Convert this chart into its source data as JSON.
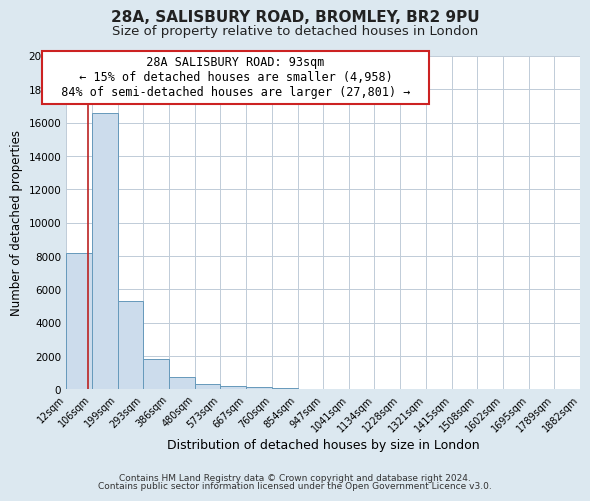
{
  "title1": "28A, SALISBURY ROAD, BROMLEY, BR2 9PU",
  "title2": "Size of property relative to detached houses in London",
  "xlabel": "Distribution of detached houses by size in London",
  "ylabel": "Number of detached properties",
  "bar_edges": [
    12,
    106,
    199,
    293,
    386,
    480,
    573,
    667,
    760,
    854,
    947,
    1041,
    1134,
    1228,
    1321,
    1415,
    1508,
    1602,
    1695,
    1789,
    1882
  ],
  "bar_heights": [
    8200,
    16600,
    5300,
    1850,
    750,
    300,
    200,
    150,
    100,
    0,
    0,
    0,
    0,
    0,
    0,
    0,
    0,
    0,
    0,
    0
  ],
  "bar_color": "#ccdcec",
  "bar_edge_color": "#6699bb",
  "property_line_x": 93,
  "property_line_color": "#bb2222",
  "annotation_title": "28A SALISBURY ROAD: 93sqm",
  "annotation_line1": "← 15% of detached houses are smaller (4,958)",
  "annotation_line2": "84% of semi-detached houses are larger (27,801) →",
  "annotation_box_color": "#ffffff",
  "annotation_box_edge": "#cc2222",
  "ylim": [
    0,
    20000
  ],
  "yticks": [
    0,
    2000,
    4000,
    6000,
    8000,
    10000,
    12000,
    14000,
    16000,
    18000,
    20000
  ],
  "xtick_labels": [
    "12sqm",
    "106sqm",
    "199sqm",
    "293sqm",
    "386sqm",
    "480sqm",
    "573sqm",
    "667sqm",
    "760sqm",
    "854sqm",
    "947sqm",
    "1041sqm",
    "1134sqm",
    "1228sqm",
    "1321sqm",
    "1415sqm",
    "1508sqm",
    "1602sqm",
    "1695sqm",
    "1789sqm",
    "1882sqm"
  ],
  "footer1": "Contains HM Land Registry data © Crown copyright and database right 2024.",
  "footer2": "Contains public sector information licensed under the Open Government Licence v3.0.",
  "fig_background_color": "#dce8f0",
  "axes_background_color": "#ffffff",
  "grid_color": "#c0ccd8",
  "title_fontsize": 11,
  "subtitle_fontsize": 9.5,
  "tick_fontsize": 7,
  "ylabel_fontsize": 8.5,
  "xlabel_fontsize": 9,
  "footer_fontsize": 6.5,
  "annotation_fontsize": 8.5
}
